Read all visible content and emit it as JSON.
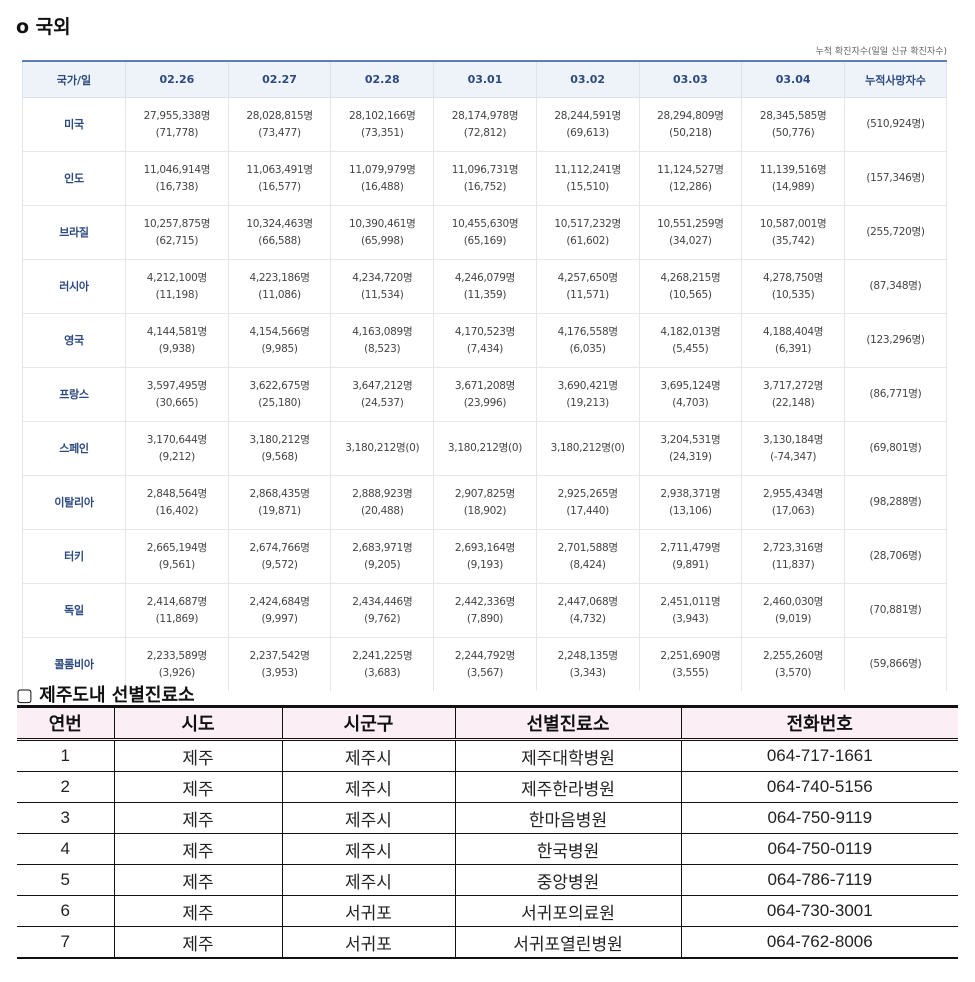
{
  "overseas": {
    "title": "o 국외",
    "note": "누적 확진자수(일일 신규 확진자수)",
    "headers": [
      "국가/일",
      "02.26",
      "02.27",
      "02.28",
      "03.01",
      "03.02",
      "03.03",
      "03.04",
      "누적사망자수"
    ],
    "rows": [
      {
        "country": "미국",
        "cells": [
          [
            "27,955,338명",
            "(71,778)"
          ],
          [
            "28,028,815명",
            "(73,477)"
          ],
          [
            "28,102,166명",
            "(73,351)"
          ],
          [
            "28,174,978명",
            "(72,812)"
          ],
          [
            "28,244,591명",
            "(69,613)"
          ],
          [
            "28,294,809명",
            "(50,218)"
          ],
          [
            "28,345,585명",
            "(50,776)"
          ]
        ],
        "deaths": "(510,924명)"
      },
      {
        "country": "인도",
        "cells": [
          [
            "11,046,914명",
            "(16,738)"
          ],
          [
            "11,063,491명",
            "(16,577)"
          ],
          [
            "11,079,979명",
            "(16,488)"
          ],
          [
            "11,096,731명",
            "(16,752)"
          ],
          [
            "11,112,241명",
            "(15,510)"
          ],
          [
            "11,124,527명",
            "(12,286)"
          ],
          [
            "11,139,516명",
            "(14,989)"
          ]
        ],
        "deaths": "(157,346명)"
      },
      {
        "country": "브라질",
        "cells": [
          [
            "10,257,875명",
            "(62,715)"
          ],
          [
            "10,324,463명",
            "(66,588)"
          ],
          [
            "10,390,461명",
            "(65,998)"
          ],
          [
            "10,455,630명",
            "(65,169)"
          ],
          [
            "10,517,232명",
            "(61,602)"
          ],
          [
            "10,551,259명",
            "(34,027)"
          ],
          [
            "10,587,001명",
            "(35,742)"
          ]
        ],
        "deaths": "(255,720명)"
      },
      {
        "country": "러시아",
        "cells": [
          [
            "4,212,100명",
            "(11,198)"
          ],
          [
            "4,223,186명",
            "(11,086)"
          ],
          [
            "4,234,720명",
            "(11,534)"
          ],
          [
            "4,246,079명",
            "(11,359)"
          ],
          [
            "4,257,650명",
            "(11,571)"
          ],
          [
            "4,268,215명",
            "(10,565)"
          ],
          [
            "4,278,750명",
            "(10,535)"
          ]
        ],
        "deaths": "(87,348명)"
      },
      {
        "country": "영국",
        "cells": [
          [
            "4,144,581명",
            "(9,938)"
          ],
          [
            "4,154,566명",
            "(9,985)"
          ],
          [
            "4,163,089명",
            "(8,523)"
          ],
          [
            "4,170,523명",
            "(7,434)"
          ],
          [
            "4,176,558명",
            "(6,035)"
          ],
          [
            "4,182,013명",
            "(5,455)"
          ],
          [
            "4,188,404명",
            "(6,391)"
          ]
        ],
        "deaths": "(123,296명)"
      },
      {
        "country": "프랑스",
        "cells": [
          [
            "3,597,495명",
            "(30,665)"
          ],
          [
            "3,622,675명",
            "(25,180)"
          ],
          [
            "3,647,212명",
            "(24,537)"
          ],
          [
            "3,671,208명",
            "(23,996)"
          ],
          [
            "3,690,421명",
            "(19,213)"
          ],
          [
            "3,695,124명",
            "(4,703)"
          ],
          [
            "3,717,272명",
            "(22,148)"
          ]
        ],
        "deaths": "(86,771명)"
      },
      {
        "country": "스페인",
        "cells": [
          [
            "3,170,644명",
            "(9,212)"
          ],
          [
            "3,180,212명",
            "(9,568)"
          ],
          [
            "3,180,212명(0)",
            ""
          ],
          [
            "3,180,212명(0)",
            ""
          ],
          [
            "3,180,212명(0)",
            ""
          ],
          [
            "3,204,531명",
            "(24,319)"
          ],
          [
            "3,130,184명",
            "(-74,347)"
          ]
        ],
        "deaths": "(69,801명)"
      },
      {
        "country": "이탈리아",
        "cells": [
          [
            "2,848,564명",
            "(16,402)"
          ],
          [
            "2,868,435명",
            "(19,871)"
          ],
          [
            "2,888,923명",
            "(20,488)"
          ],
          [
            "2,907,825명",
            "(18,902)"
          ],
          [
            "2,925,265명",
            "(17,440)"
          ],
          [
            "2,938,371명",
            "(13,106)"
          ],
          [
            "2,955,434명",
            "(17,063)"
          ]
        ],
        "deaths": "(98,288명)"
      },
      {
        "country": "터키",
        "cells": [
          [
            "2,665,194명",
            "(9,561)"
          ],
          [
            "2,674,766명",
            "(9,572)"
          ],
          [
            "2,683,971명",
            "(9,205)"
          ],
          [
            "2,693,164명",
            "(9,193)"
          ],
          [
            "2,701,588명",
            "(8,424)"
          ],
          [
            "2,711,479명",
            "(9,891)"
          ],
          [
            "2,723,316명",
            "(11,837)"
          ]
        ],
        "deaths": "(28,706명)"
      },
      {
        "country": "독일",
        "cells": [
          [
            "2,414,687명",
            "(11,869)"
          ],
          [
            "2,424,684명",
            "(9,997)"
          ],
          [
            "2,434,446명",
            "(9,762)"
          ],
          [
            "2,442,336명",
            "(7,890)"
          ],
          [
            "2,447,068명",
            "(4,732)"
          ],
          [
            "2,451,011명",
            "(3,943)"
          ],
          [
            "2,460,030명",
            "(9,019)"
          ]
        ],
        "deaths": "(70,881명)"
      },
      {
        "country": "콜롬비아",
        "cells": [
          [
            "2,233,589명",
            "(3,926)"
          ],
          [
            "2,237,542명",
            "(3,953)"
          ],
          [
            "2,241,225명",
            "(3,683)"
          ],
          [
            "2,244,792명",
            "(3,567)"
          ],
          [
            "2,248,135명",
            "(3,343)"
          ],
          [
            "2,251,690명",
            "(3,555)"
          ],
          [
            "2,255,260명",
            "(3,570)"
          ]
        ],
        "deaths": "(59,866명)"
      }
    ]
  },
  "clinics": {
    "title": "▢ 제주도내 선별진료소",
    "headers": [
      "연번",
      "시도",
      "시군구",
      "선별진료소",
      "전화번호"
    ],
    "rows": [
      [
        "1",
        "제주",
        "제주시",
        "제주대학병원",
        "064-717-1661"
      ],
      [
        "2",
        "제주",
        "제주시",
        "제주한라병원",
        "064-740-5156"
      ],
      [
        "3",
        "제주",
        "제주시",
        "한마음병원",
        "064-750-9119"
      ],
      [
        "4",
        "제주",
        "제주시",
        "한국병원",
        "064-750-0119"
      ],
      [
        "5",
        "제주",
        "제주시",
        "중앙병원",
        "064-786-7119"
      ],
      [
        "6",
        "제주",
        "서귀포",
        "서귀포의료원",
        "064-730-3001"
      ],
      [
        "7",
        "제주",
        "서귀포",
        "서귀포열린병원",
        "064-762-8006"
      ]
    ]
  }
}
